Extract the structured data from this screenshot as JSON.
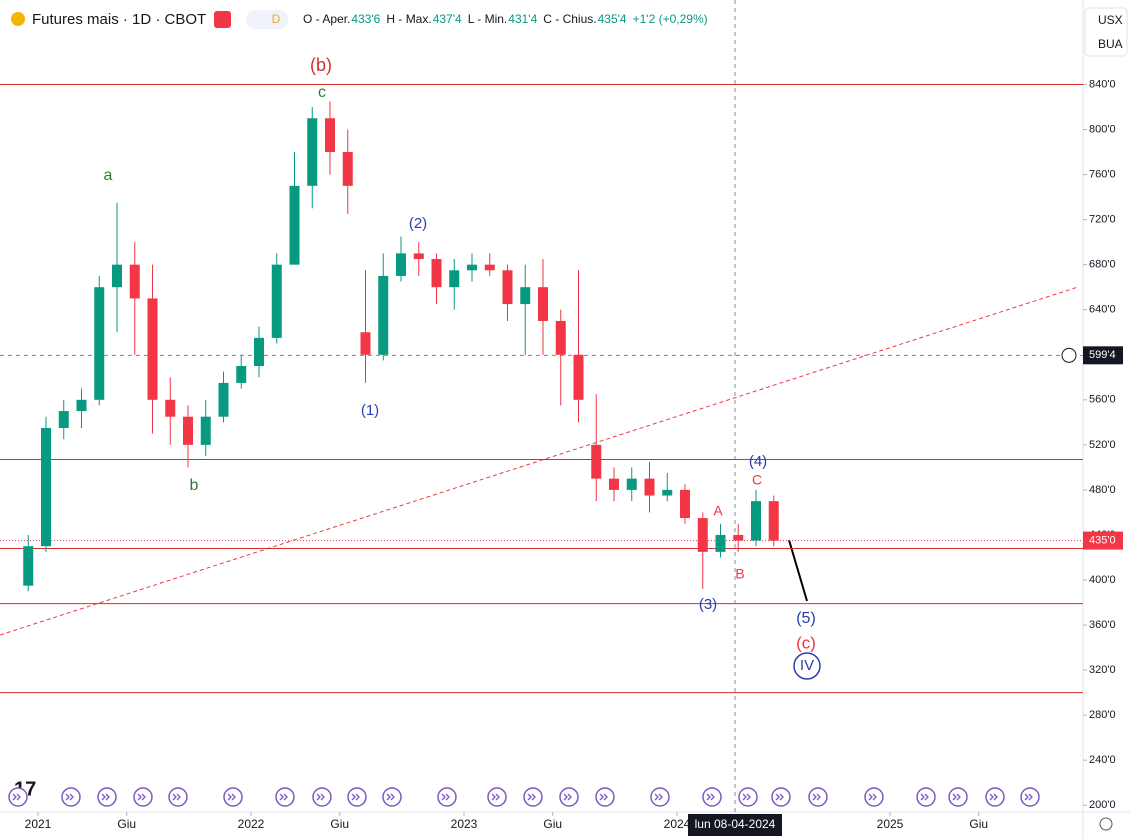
{
  "chart_data": {
    "type": "candlestick",
    "title": "Futures mais · 1D · CBOT",
    "badge": "D",
    "ohlc_legend": [
      "O - Aper.",
      "433'6",
      "H - Max.",
      "437'4",
      "L - Min.",
      "431'4",
      "C - Chius.",
      "435'4",
      "+1'2 (+0,29%)"
    ],
    "currency": "USX",
    "unit": "BUA",
    "x": [
      "2020-12",
      "2021-01",
      "2021-02",
      "2021-03",
      "2021-04",
      "2021-05",
      "2021-06",
      "2021-07",
      "2021-08",
      "2021-09",
      "2021-10",
      "2021-11",
      "2021-12",
      "2022-01",
      "2022-02",
      "2022-03",
      "2022-04",
      "2022-05",
      "2022-06",
      "2022-07",
      "2022-08",
      "2022-09",
      "2022-10",
      "2022-11",
      "2022-12",
      "2023-01",
      "2023-02",
      "2023-03",
      "2023-04",
      "2023-05",
      "2023-06",
      "2023-07",
      "2023-08",
      "2023-09",
      "2023-10",
      "2023-11",
      "2023-12",
      "2024-01",
      "2024-02",
      "2024-03",
      "2024-04",
      "2024-05",
      "2024-06"
    ],
    "open": [
      395,
      430,
      535,
      550,
      560,
      660,
      680,
      650,
      560,
      545,
      520,
      545,
      575,
      590,
      615,
      680,
      750,
      810,
      780,
      620,
      600,
      670,
      690,
      685,
      660,
      675,
      680,
      675,
      645,
      660,
      630,
      600,
      520,
      490,
      480,
      490,
      475,
      480,
      455,
      425,
      440,
      435,
      470
    ],
    "high": [
      440,
      545,
      560,
      570,
      670,
      735,
      700,
      680,
      580,
      555,
      560,
      585,
      600,
      625,
      690,
      780,
      820,
      825,
      800,
      675,
      690,
      705,
      700,
      690,
      685,
      690,
      690,
      680,
      680,
      685,
      640,
      675,
      565,
      500,
      500,
      505,
      495,
      485,
      460,
      450,
      450,
      480,
      475
    ],
    "low": [
      390,
      425,
      525,
      535,
      555,
      620,
      600,
      530,
      520,
      500,
      510,
      540,
      570,
      580,
      610,
      680,
      730,
      760,
      725,
      575,
      595,
      665,
      670,
      645,
      640,
      665,
      670,
      630,
      600,
      600,
      555,
      540,
      470,
      470,
      470,
      460,
      470,
      450,
      392,
      420,
      425,
      430,
      430
    ],
    "close": [
      430,
      535,
      550,
      560,
      660,
      680,
      650,
      560,
      545,
      520,
      545,
      575,
      590,
      615,
      680,
      750,
      810,
      780,
      750,
      600,
      670,
      690,
      685,
      660,
      675,
      680,
      675,
      645,
      660,
      630,
      600,
      560,
      490,
      480,
      490,
      475,
      480,
      455,
      425,
      440,
      435,
      470,
      435
    ],
    "up_color": "#089981",
    "down_color": "#f23645",
    "ylim": [
      194,
      915
    ],
    "yticks": [
      {
        "value": 200,
        "label": "200'0"
      },
      {
        "value": 240,
        "label": "240'0"
      },
      {
        "value": 280,
        "label": "280'0"
      },
      {
        "value": 320,
        "label": "320'0"
      },
      {
        "value": 360,
        "label": "360'0"
      },
      {
        "value": 400,
        "label": "400'0"
      },
      {
        "value": 440,
        "label": "440'0"
      },
      {
        "value": 480,
        "label": "480'0"
      },
      {
        "value": 520,
        "label": "520'0"
      },
      {
        "value": 560,
        "label": "560'0"
      },
      {
        "value": 600,
        "label": "600'0"
      },
      {
        "value": 640,
        "label": "640'0"
      },
      {
        "value": 680,
        "label": "680'0"
      },
      {
        "value": 720,
        "label": "720'0"
      },
      {
        "value": 760,
        "label": "760'0"
      },
      {
        "value": 800,
        "label": "800'0"
      },
      {
        "value": 840,
        "label": "840'0"
      }
    ],
    "xticks": [
      {
        "value": "2021-01",
        "label": "2021"
      },
      {
        "value": "2021-06",
        "label": "Giu"
      },
      {
        "value": "2022-01",
        "label": "2022"
      },
      {
        "value": "2022-06",
        "label": "Giu"
      },
      {
        "value": "2023-01",
        "label": "2023"
      },
      {
        "value": "2023-06",
        "label": "Giu"
      },
      {
        "value": "2024-01",
        "label": "2024"
      },
      {
        "value": "2025-01",
        "label": "2025"
      },
      {
        "value": "2025-06",
        "label": "Giu"
      }
    ],
    "hlines": [
      840,
      507,
      428,
      379,
      300
    ],
    "last_price": {
      "value": 435,
      "label": "435'0"
    },
    "crosshair": {
      "value": 599.5,
      "label": "599'4",
      "date": "lun 08-04-2024"
    },
    "annotations": [
      "(b)",
      "c",
      "a",
      "b",
      "(1)",
      "(2)",
      "(3)",
      "(4)",
      "(5)",
      "A",
      "B",
      "C",
      "(c)",
      "IV"
    ]
  }
}
